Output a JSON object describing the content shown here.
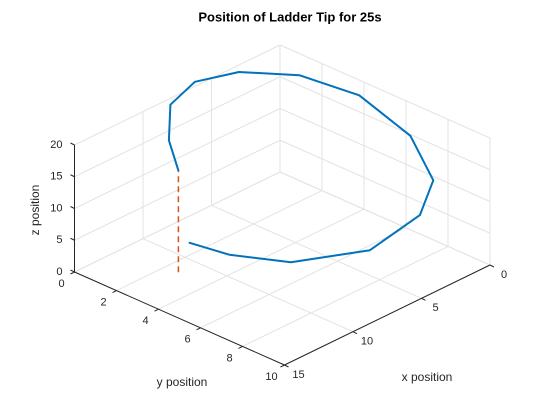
{
  "chart_data": {
    "type": "line3d",
    "title": "Position of Ladder Tip for 25s",
    "xlabel": "x position",
    "ylabel": "y position",
    "zlabel": "z position",
    "xlim": [
      0,
      15
    ],
    "xticks": [
      0,
      5,
      10,
      15
    ],
    "ylim": [
      0,
      10
    ],
    "yticks": [
      0,
      2,
      4,
      6,
      8,
      10
    ],
    "zlim": [
      0,
      20
    ],
    "zticks": [
      0,
      5,
      10,
      15,
      20
    ],
    "grid": true,
    "series": [
      {
        "color": "#0072bd",
        "style": "solid",
        "x": [
          11.4,
          10.1,
          8.0,
          5.6,
          3.3,
          1.2,
          0.2,
          0.6,
          2.3,
          4.5,
          8.0,
          10.7,
          11.5,
          11.2
        ],
        "y": [
          2.6,
          1.3,
          0.0,
          -0.4,
          0.2,
          1.7,
          3.9,
          6.6,
          8.8,
          9.6,
          9.5,
          7.5,
          5.1,
          3.0
        ],
        "z": [
          16,
          17.5,
          19,
          19.5,
          19.5,
          19,
          18,
          16,
          14,
          12,
          10,
          8,
          6.5,
          5
        ]
      },
      {
        "color": "#d95319",
        "style": "dashed",
        "x": [
          11.4,
          11.4
        ],
        "y": [
          2.6,
          2.6
        ],
        "z": [
          0,
          16
        ]
      }
    ]
  }
}
